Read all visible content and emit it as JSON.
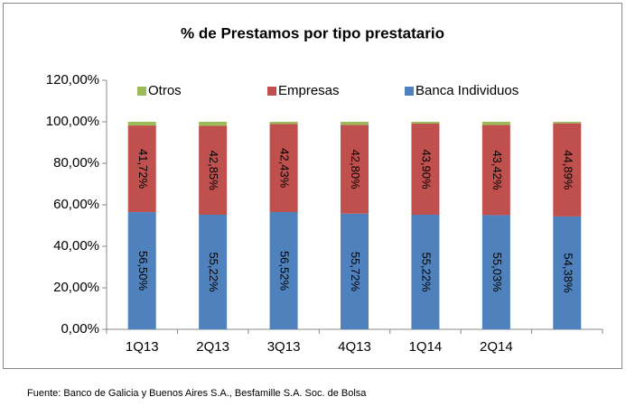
{
  "chart_data": {
    "type": "stacked_bar",
    "title": "% de Prestamos por tipo prestatario",
    "categories": [
      "1Q13",
      "2Q13",
      "3Q13",
      "4Q13",
      "1Q14",
      "2Q14",
      null
    ],
    "series": [
      {
        "name": "Banca Individuos",
        "color": "#4f81bd",
        "values": [
          56.5,
          55.22,
          56.52,
          55.72,
          55.22,
          55.03,
          54.38
        ],
        "value_labels": [
          "56,50%",
          "55,22%",
          "56,52%",
          "55,72%",
          "55,22%",
          "55,03%",
          "54,38%"
        ]
      },
      {
        "name": "Empresas",
        "color": "#c0504d",
        "values": [
          41.72,
          42.85,
          42.43,
          42.8,
          43.9,
          43.42,
          44.89
        ],
        "value_labels": [
          "41,72%",
          "42,85%",
          "42,43%",
          "42,80%",
          "43,90%",
          "43,42%",
          "44,89%"
        ]
      },
      {
        "name": "Otros",
        "color": "#9bbb59",
        "values": [
          1.78,
          1.93,
          1.05,
          1.48,
          0.88,
          1.55,
          0.73
        ]
      }
    ],
    "ylim": [
      0,
      120
    ],
    "yticks": [
      {
        "value": 0,
        "label": "0,00%"
      },
      {
        "value": 20,
        "label": "20,00%"
      },
      {
        "value": 40,
        "label": "40,00%"
      },
      {
        "value": 60,
        "label": "60,00%"
      },
      {
        "value": 80,
        "label": "80,00%"
      },
      {
        "value": 100,
        "label": "100,00%"
      },
      {
        "value": 120,
        "label": "120,00%"
      }
    ],
    "legend": "top",
    "source": "Fuente: Banco de Galicia y Buenos Aires S.A., Besfamille S.A. Soc. de Bolsa"
  }
}
